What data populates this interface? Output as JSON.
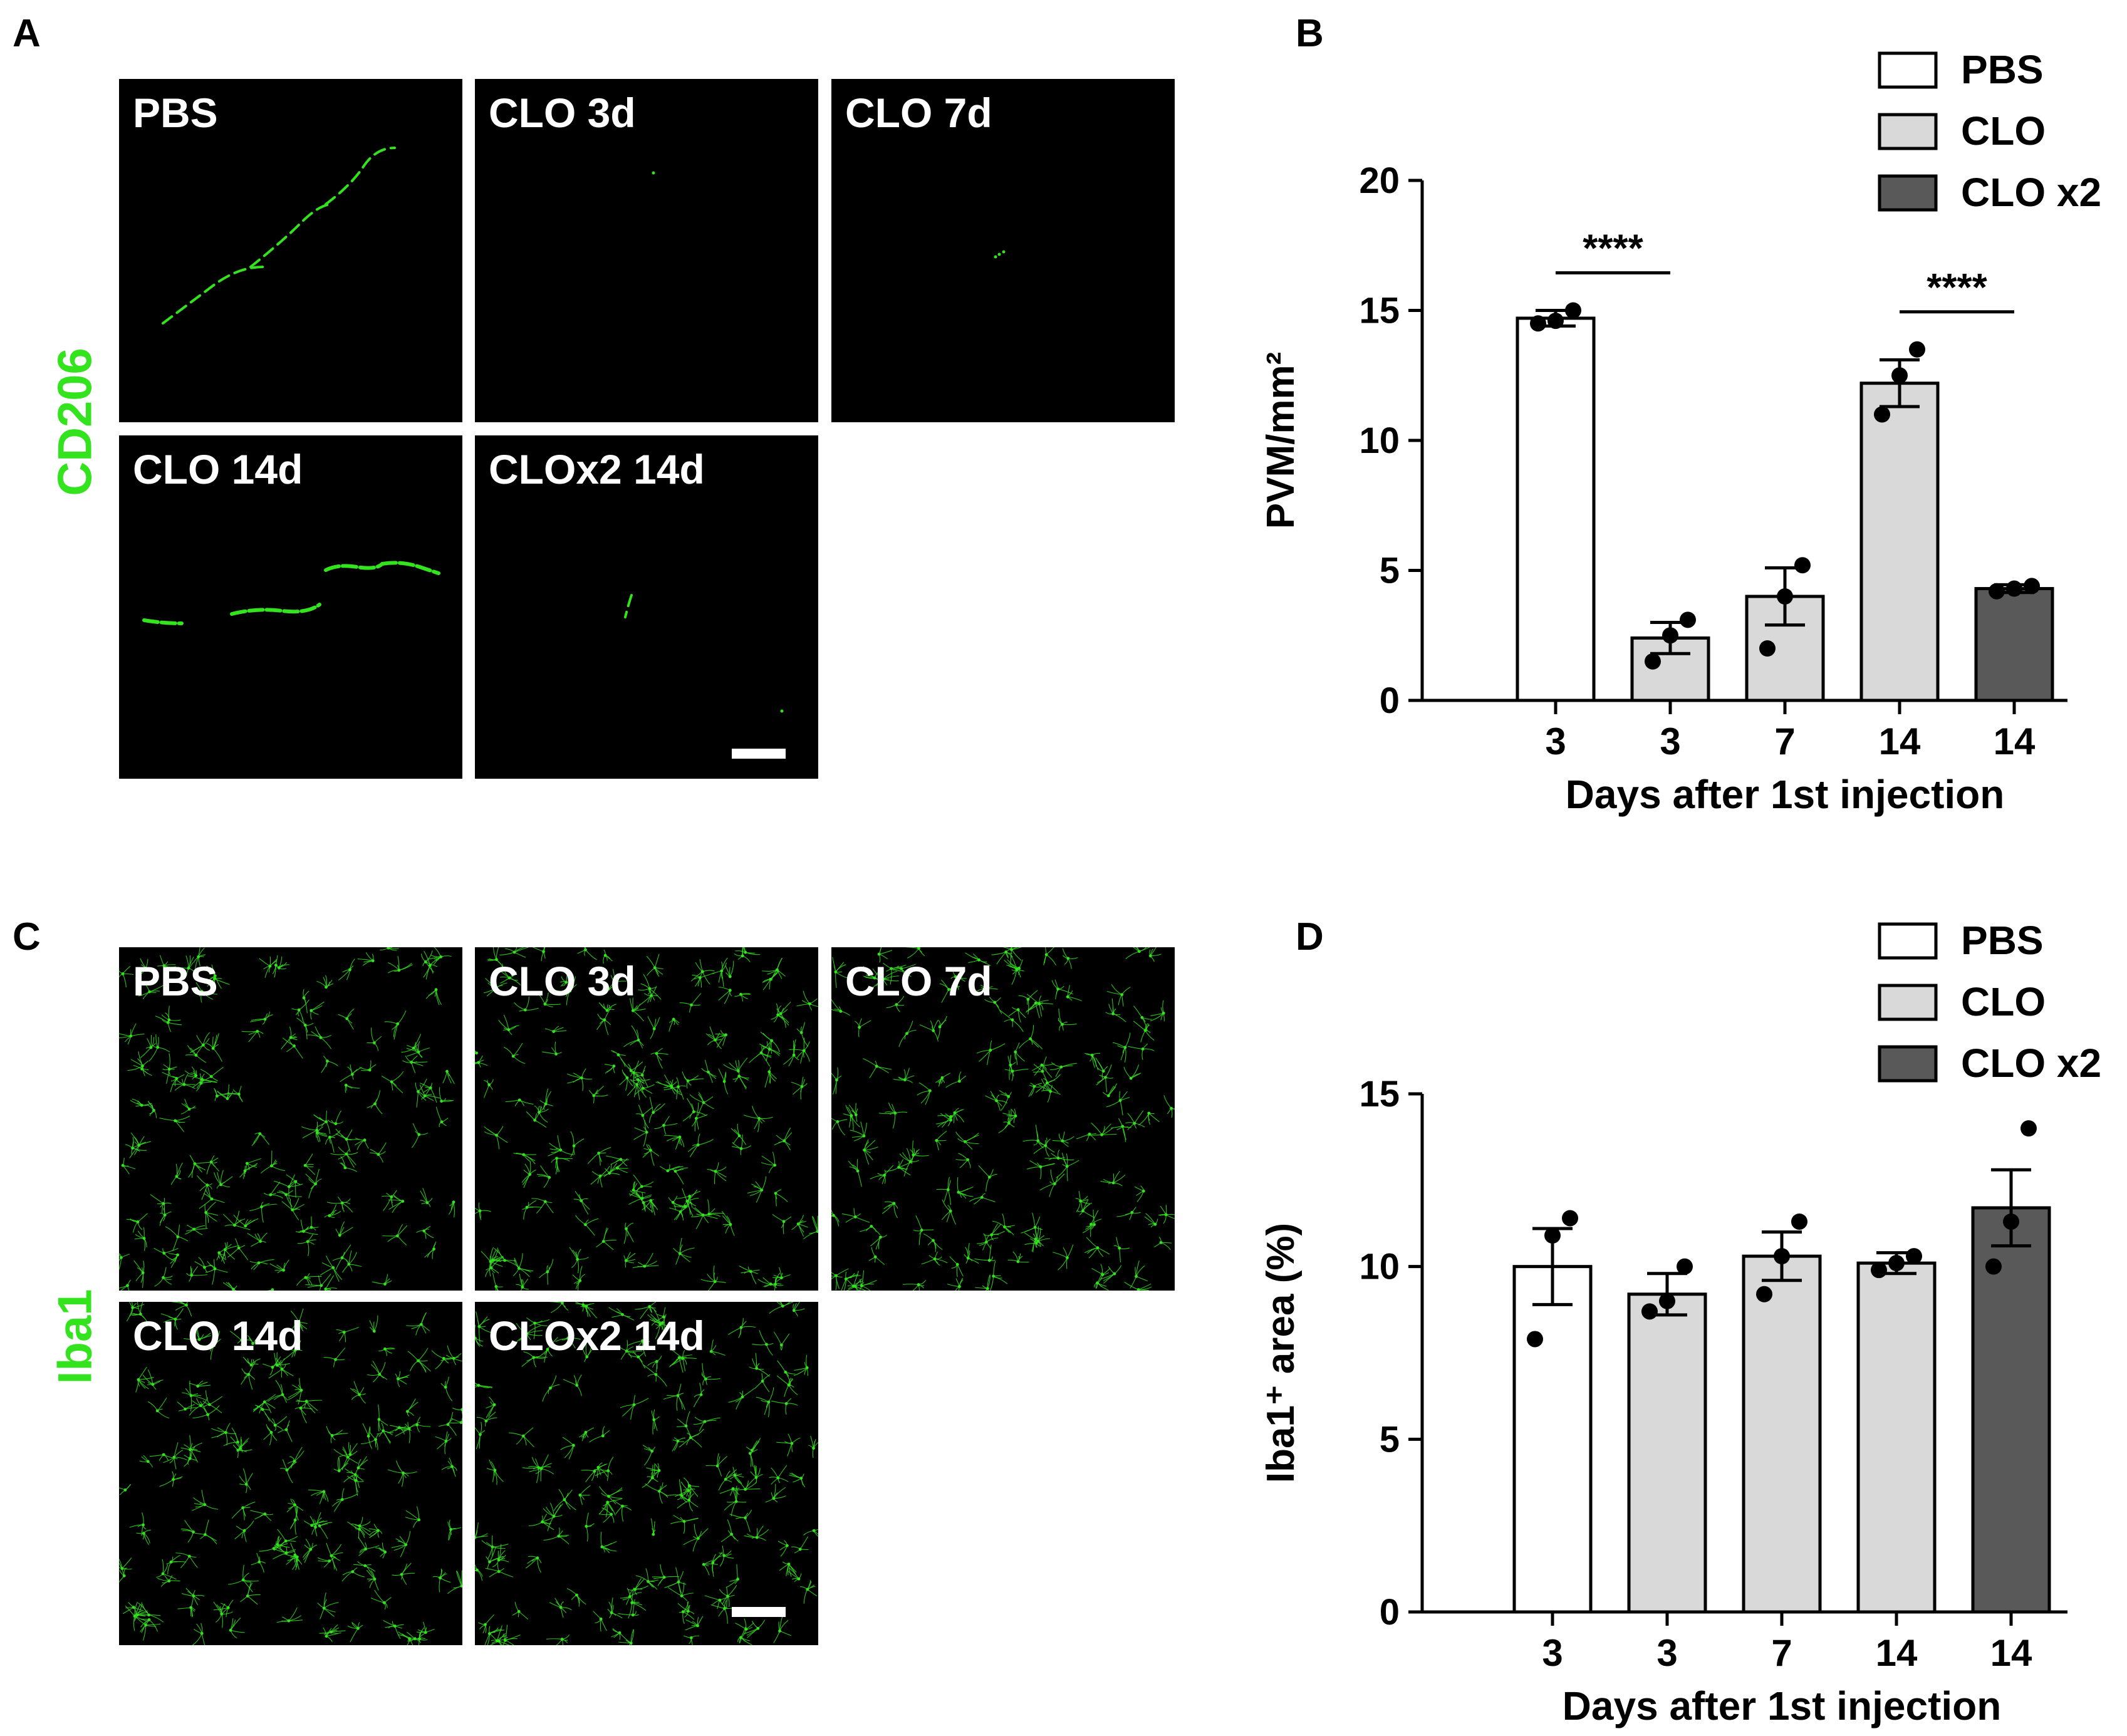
{
  "panels": {
    "A": {
      "letter": "A",
      "stain": "CD206",
      "stain_color": "#33e31d",
      "images": [
        {
          "label": "PBS"
        },
        {
          "label": "CLO 3d"
        },
        {
          "label": "CLO 7d"
        },
        {
          "label": "CLO 14d"
        },
        {
          "label": "CLOx2 14d"
        }
      ]
    },
    "C": {
      "letter": "C",
      "stain": "Iba1",
      "stain_color": "#33e31d",
      "images": [
        {
          "label": "PBS"
        },
        {
          "label": "CLO 3d"
        },
        {
          "label": "CLO 7d"
        },
        {
          "label": "CLO 14d"
        },
        {
          "label": "CLOx2 14d"
        }
      ]
    },
    "B": {
      "letter": "B"
    },
    "D": {
      "letter": "D"
    }
  },
  "chart_data": [
    {
      "panel": "B",
      "type": "bar",
      "categories": [
        "3",
        "3",
        "7",
        "14",
        "14"
      ],
      "groups": [
        "PBS",
        "CLO",
        "CLO",
        "CLO",
        "CLO x2"
      ],
      "values": [
        14.7,
        2.4,
        4.0,
        12.2,
        4.3
      ],
      "sem": [
        0.3,
        0.6,
        1.1,
        0.9,
        0.15
      ],
      "points": [
        [
          14.5,
          14.6,
          15.0
        ],
        [
          1.5,
          2.5,
          3.1
        ],
        [
          2.0,
          4.0,
          5.2
        ],
        [
          11.0,
          12.5,
          13.5
        ],
        [
          4.2,
          4.3,
          4.4
        ]
      ],
      "ylabel": "PVM/mm²",
      "xlabel": "Days after 1st injection",
      "ylim": [
        0,
        20
      ],
      "yticks": [
        0,
        5,
        10,
        15,
        20
      ],
      "legend": [
        {
          "label": "PBS",
          "color": "#ffffff"
        },
        {
          "label": "CLO",
          "color": "#d9d9d9"
        },
        {
          "label": "CLO x2",
          "color": "#595959"
        }
      ],
      "legend_position": "top-right",
      "significance": [
        {
          "from": 0,
          "to": 1,
          "label": "****"
        },
        {
          "from": 3,
          "to": 4,
          "label": "****"
        }
      ]
    },
    {
      "panel": "D",
      "type": "bar",
      "categories": [
        "3",
        "3",
        "7",
        "14",
        "14"
      ],
      "groups": [
        "PBS",
        "CLO",
        "CLO",
        "CLO",
        "CLO x2"
      ],
      "values": [
        10.0,
        9.2,
        10.3,
        10.1,
        11.7
      ],
      "sem": [
        1.1,
        0.6,
        0.7,
        0.3,
        1.1
      ],
      "points": [
        [
          7.9,
          10.9,
          11.4
        ],
        [
          8.7,
          9.0,
          10.0
        ],
        [
          9.2,
          10.3,
          11.3
        ],
        [
          9.9,
          10.1,
          10.3
        ],
        [
          10.0,
          11.3,
          14.0
        ]
      ],
      "ylabel": "Iba1⁺ area (%)",
      "xlabel": "Days after 1st injection",
      "ylim": [
        0,
        15
      ],
      "yticks": [
        0,
        5,
        10,
        15
      ],
      "legend": [
        {
          "label": "PBS",
          "color": "#ffffff"
        },
        {
          "label": "CLO",
          "color": "#d9d9d9"
        },
        {
          "label": "CLO x2",
          "color": "#595959"
        }
      ],
      "legend_position": "top-right",
      "significance": []
    }
  ]
}
